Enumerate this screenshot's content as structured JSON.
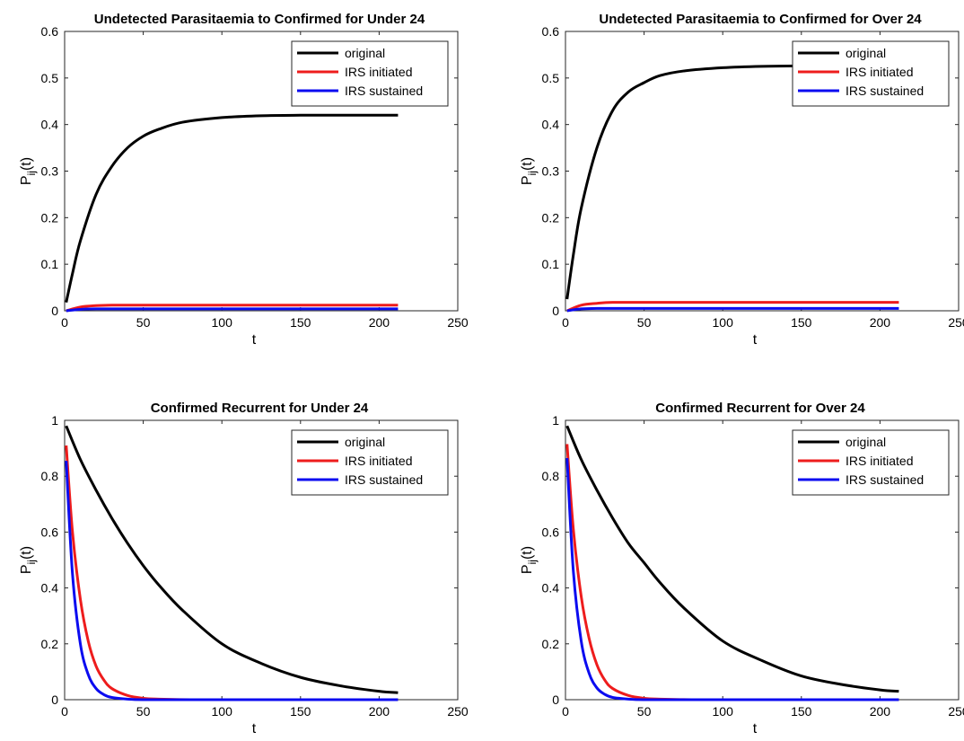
{
  "colors": {
    "original": "#000000",
    "IRS initiated": "#ee1c1c",
    "IRS sustained": "#0b0bf0"
  },
  "chart_data": [
    {
      "type": "line",
      "title": "Undetected Parasitaemia to Confirmed for Under 24",
      "xlabel": "t",
      "ylabel": "P_ij(t)",
      "xlim": [
        0,
        250
      ],
      "ylim": [
        0,
        0.6
      ],
      "xticks": [
        0,
        50,
        100,
        150,
        200,
        250
      ],
      "yticks": [
        0,
        0.1,
        0.2,
        0.3,
        0.4,
        0.5,
        0.6
      ],
      "legend_position": "top-right",
      "series": [
        {
          "name": "original",
          "x": [
            1,
            5,
            10,
            20,
            30,
            40,
            50,
            60,
            75,
            100,
            125,
            150,
            175,
            212
          ],
          "y": [
            0.018,
            0.08,
            0.15,
            0.25,
            0.31,
            0.35,
            0.375,
            0.39,
            0.405,
            0.415,
            0.419,
            0.42,
            0.42,
            0.42
          ]
        },
        {
          "name": "IRS initiated",
          "x": [
            1,
            10,
            20,
            30,
            50,
            100,
            212
          ],
          "y": [
            0.0,
            0.008,
            0.011,
            0.012,
            0.012,
            0.012,
            0.012
          ]
        },
        {
          "name": "IRS sustained",
          "x": [
            1,
            10,
            20,
            50,
            100,
            212
          ],
          "y": [
            0.0,
            0.003,
            0.004,
            0.004,
            0.004,
            0.004
          ]
        }
      ]
    },
    {
      "type": "line",
      "title": "Undetected Parasitaemia to Confirmed for Over 24",
      "xlabel": "t",
      "ylabel": "P_ij(t)",
      "xlim": [
        0,
        250
      ],
      "ylim": [
        0,
        0.6
      ],
      "xticks": [
        0,
        50,
        100,
        150,
        200,
        250
      ],
      "yticks": [
        0,
        0.1,
        0.2,
        0.3,
        0.4,
        0.5,
        0.6
      ],
      "legend_position": "top-right",
      "series": [
        {
          "name": "original",
          "x": [
            1,
            5,
            10,
            20,
            30,
            40,
            50,
            60,
            75,
            100,
            125,
            150,
            175,
            212
          ],
          "y": [
            0.025,
            0.12,
            0.22,
            0.35,
            0.43,
            0.47,
            0.49,
            0.505,
            0.515,
            0.522,
            0.525,
            0.526,
            0.526,
            0.526
          ]
        },
        {
          "name": "IRS initiated",
          "x": [
            1,
            10,
            20,
            30,
            50,
            100,
            212
          ],
          "y": [
            0.0,
            0.012,
            0.016,
            0.018,
            0.018,
            0.018,
            0.018
          ]
        },
        {
          "name": "IRS sustained",
          "x": [
            1,
            10,
            20,
            50,
            100,
            212
          ],
          "y": [
            0.0,
            0.004,
            0.005,
            0.005,
            0.005,
            0.005
          ]
        }
      ]
    },
    {
      "type": "line",
      "title": "Confirmed Recurrent for Under 24",
      "xlabel": "t",
      "ylabel": "P_ij(t)",
      "xlim": [
        0,
        250
      ],
      "ylim": [
        0,
        1
      ],
      "xticks": [
        0,
        50,
        100,
        150,
        200,
        250
      ],
      "yticks": [
        0,
        0.2,
        0.4,
        0.6,
        0.8,
        1
      ],
      "legend_position": "top-right",
      "series": [
        {
          "name": "original",
          "x": [
            1,
            10,
            20,
            30,
            40,
            50,
            60,
            75,
            100,
            125,
            150,
            175,
            200,
            212
          ],
          "y": [
            0.98,
            0.86,
            0.75,
            0.65,
            0.56,
            0.48,
            0.41,
            0.32,
            0.2,
            0.13,
            0.08,
            0.05,
            0.03,
            0.025
          ]
        },
        {
          "name": "IRS initiated",
          "x": [
            1,
            5,
            10,
            15,
            20,
            25,
            30,
            40,
            50,
            60,
            80,
            100,
            212
          ],
          "y": [
            0.91,
            0.6,
            0.36,
            0.21,
            0.12,
            0.07,
            0.04,
            0.015,
            0.005,
            0.002,
            0.0,
            0.0,
            0.0
          ]
        },
        {
          "name": "IRS sustained",
          "x": [
            1,
            5,
            10,
            15,
            20,
            25,
            30,
            40,
            50,
            80,
            212
          ],
          "y": [
            0.855,
            0.45,
            0.2,
            0.09,
            0.04,
            0.018,
            0.008,
            0.002,
            0.0,
            0.0,
            0.0
          ]
        }
      ]
    },
    {
      "type": "line",
      "title": "Confirmed Recurrent for Over 24",
      "xlabel": "t",
      "ylabel": "P_ij(t)",
      "xlim": [
        0,
        250
      ],
      "ylim": [
        0,
        1
      ],
      "xticks": [
        0,
        50,
        100,
        150,
        200,
        250
      ],
      "yticks": [
        0,
        0.2,
        0.4,
        0.6,
        0.8,
        1
      ],
      "legend_position": "top-right",
      "series": [
        {
          "name": "original",
          "x": [
            1,
            10,
            20,
            30,
            40,
            50,
            60,
            75,
            100,
            125,
            150,
            175,
            200,
            212
          ],
          "y": [
            0.98,
            0.86,
            0.75,
            0.65,
            0.56,
            0.49,
            0.42,
            0.33,
            0.21,
            0.14,
            0.085,
            0.055,
            0.035,
            0.03
          ]
        },
        {
          "name": "IRS initiated",
          "x": [
            1,
            5,
            10,
            15,
            20,
            25,
            30,
            40,
            50,
            60,
            80,
            100,
            212
          ],
          "y": [
            0.915,
            0.61,
            0.37,
            0.22,
            0.125,
            0.07,
            0.04,
            0.015,
            0.005,
            0.002,
            0.0,
            0.0,
            0.0
          ]
        },
        {
          "name": "IRS sustained",
          "x": [
            1,
            5,
            10,
            15,
            20,
            25,
            30,
            40,
            50,
            80,
            212
          ],
          "y": [
            0.865,
            0.46,
            0.21,
            0.095,
            0.042,
            0.019,
            0.008,
            0.002,
            0.0,
            0.0,
            0.0
          ]
        }
      ]
    }
  ]
}
